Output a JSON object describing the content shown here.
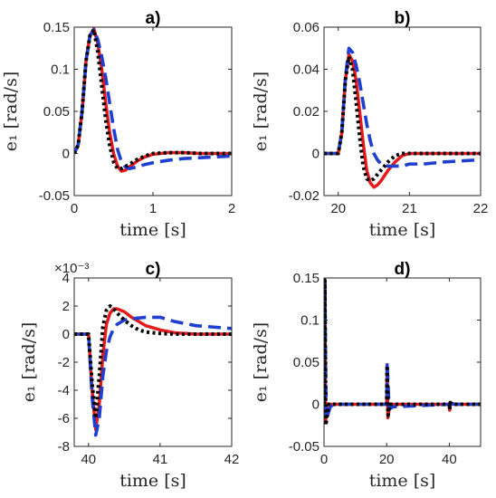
{
  "chart_data": [
    {
      "type": "line",
      "title": "a)",
      "xlabel": "time [s]",
      "ylabel": "e₁ [rad/s]",
      "xlim": [
        0,
        2
      ],
      "ylim": [
        -0.05,
        0.15
      ],
      "xticks": [
        0,
        1,
        2
      ],
      "yticks": [
        -0.05,
        0,
        0.05,
        0.1,
        0.15
      ],
      "xticklabels": [
        "0",
        "1",
        "2"
      ],
      "yticklabels": [
        "-0.05",
        "0",
        "0.05",
        "0.1",
        "0.15"
      ],
      "exponent": "",
      "series": [
        {
          "color": "#E41A1C",
          "style": "solid",
          "x": [
            0,
            0.05,
            0.1,
            0.15,
            0.2,
            0.25,
            0.3,
            0.35,
            0.4,
            0.45,
            0.5,
            0.55,
            0.6,
            0.65,
            0.7,
            0.8,
            0.9,
            1.0,
            1.2,
            1.4,
            1.6,
            1.8,
            2.0
          ],
          "y": [
            0,
            0.01,
            0.05,
            0.11,
            0.14,
            0.148,
            0.13,
            0.1,
            0.06,
            0.025,
            0.0,
            -0.015,
            -0.021,
            -0.02,
            -0.016,
            -0.009,
            -0.004,
            -0.001,
            0.001,
            0.001,
            0.0,
            0.0,
            0.0
          ]
        },
        {
          "color": "#1F3FD0",
          "style": "dashed",
          "x": [
            0,
            0.05,
            0.1,
            0.15,
            0.2,
            0.25,
            0.3,
            0.35,
            0.4,
            0.45,
            0.5,
            0.55,
            0.6,
            0.65,
            0.7,
            0.8,
            0.9,
            1.0,
            1.2,
            1.4,
            1.6,
            1.8,
            2.0
          ],
          "y": [
            0,
            0.01,
            0.05,
            0.11,
            0.14,
            0.147,
            0.135,
            0.115,
            0.09,
            0.06,
            0.03,
            0.005,
            -0.01,
            -0.016,
            -0.018,
            -0.016,
            -0.013,
            -0.011,
            -0.008,
            -0.006,
            -0.005,
            -0.004,
            -0.003
          ]
        },
        {
          "color": "#000000",
          "style": "dotted",
          "x": [
            0,
            0.05,
            0.1,
            0.15,
            0.2,
            0.25,
            0.3,
            0.35,
            0.4,
            0.45,
            0.5,
            0.55,
            0.6,
            0.7,
            0.8,
            0.9,
            1.0,
            1.2,
            1.4,
            1.6,
            1.8,
            2.0
          ],
          "y": [
            0,
            0.01,
            0.05,
            0.11,
            0.14,
            0.147,
            0.12,
            0.08,
            0.04,
            0.01,
            -0.01,
            -0.018,
            -0.018,
            -0.013,
            -0.007,
            -0.003,
            0.0,
            0.001,
            0.001,
            0.0,
            0.0,
            0.0
          ]
        }
      ]
    },
    {
      "type": "line",
      "title": "b)",
      "xlabel": "time [s]",
      "ylabel": "e₁ [rad/s]",
      "xlim": [
        19.8,
        22
      ],
      "ylim": [
        -0.02,
        0.06
      ],
      "xticks": [
        20,
        21,
        22
      ],
      "yticks": [
        -0.02,
        0,
        0.02,
        0.04,
        0.06
      ],
      "xticklabels": [
        "20",
        "21",
        "22"
      ],
      "yticklabels": [
        "-0.02",
        "0",
        "0.02",
        "0.04",
        "0.06"
      ],
      "exponent": "",
      "series": [
        {
          "color": "#E41A1C",
          "style": "solid",
          "x": [
            19.8,
            20.0,
            20.05,
            20.1,
            20.15,
            20.2,
            20.25,
            20.3,
            20.35,
            20.4,
            20.45,
            20.5,
            20.55,
            20.6,
            20.7,
            20.8,
            20.9,
            21.0,
            21.2,
            21.5,
            22.0
          ],
          "y": [
            0,
            0,
            0.01,
            0.035,
            0.047,
            0.044,
            0.035,
            0.02,
            0.005,
            -0.008,
            -0.014,
            -0.016,
            -0.015,
            -0.013,
            -0.008,
            -0.004,
            -0.001,
            0.0,
            0.0,
            0.0,
            0.0
          ]
        },
        {
          "color": "#1F3FD0",
          "style": "dashed",
          "x": [
            19.8,
            20.0,
            20.05,
            20.1,
            20.15,
            20.2,
            20.25,
            20.3,
            20.35,
            20.4,
            20.45,
            20.5,
            20.55,
            20.6,
            20.7,
            20.8,
            20.9,
            21.0,
            21.2,
            21.5,
            22.0
          ],
          "y": [
            0,
            0,
            0.01,
            0.036,
            0.05,
            0.048,
            0.042,
            0.034,
            0.024,
            0.014,
            0.006,
            0.0,
            -0.003,
            -0.005,
            -0.006,
            -0.006,
            -0.006,
            -0.005,
            -0.005,
            -0.004,
            -0.003
          ]
        },
        {
          "color": "#000000",
          "style": "dotted",
          "x": [
            19.8,
            20.0,
            20.05,
            20.1,
            20.15,
            20.2,
            20.25,
            20.3,
            20.35,
            20.4,
            20.45,
            20.5,
            20.6,
            20.7,
            20.8,
            20.9,
            21.0,
            21.2,
            21.5,
            22.0
          ],
          "y": [
            0,
            0,
            0.01,
            0.035,
            0.046,
            0.04,
            0.025,
            0.008,
            -0.006,
            -0.012,
            -0.013,
            -0.012,
            -0.008,
            -0.004,
            -0.001,
            0.0,
            0.0,
            0.0,
            0.0,
            0.0
          ]
        }
      ]
    },
    {
      "type": "line",
      "title": "c)",
      "xlabel": "time [s]",
      "ylabel": "e₁ [rad/s]",
      "xlim": [
        39.8,
        42
      ],
      "ylim": [
        -8,
        4
      ],
      "xticks": [
        40,
        41,
        42
      ],
      "yticks": [
        -8,
        -6,
        -4,
        -2,
        0,
        2,
        4
      ],
      "xticklabels": [
        "40",
        "41",
        "42"
      ],
      "yticklabels": [
        "-8",
        "-6",
        "-4",
        "-2",
        "0",
        "2",
        "4"
      ],
      "exponent": "×10⁻³",
      "series": [
        {
          "color": "#E41A1C",
          "style": "solid",
          "x": [
            39.8,
            40.0,
            40.05,
            40.1,
            40.15,
            40.2,
            40.25,
            40.3,
            40.35,
            40.4,
            40.5,
            40.6,
            40.7,
            40.8,
            41.0,
            41.2,
            41.5,
            42.0
          ],
          "y": [
            0,
            0,
            -4,
            -6.8,
            -5,
            -1.5,
            0.7,
            1.5,
            1.8,
            1.8,
            1.6,
            1.2,
            0.9,
            0.6,
            0.3,
            0.1,
            0.0,
            0.0
          ]
        },
        {
          "color": "#1F3FD0",
          "style": "dashed",
          "x": [
            39.8,
            40.0,
            40.05,
            40.1,
            40.15,
            40.2,
            40.25,
            40.3,
            40.35,
            40.4,
            40.5,
            40.6,
            40.7,
            40.8,
            41.0,
            41.2,
            41.5,
            42.0
          ],
          "y": [
            0,
            0,
            -4.5,
            -7.2,
            -6,
            -3,
            -1.2,
            -0.2,
            0.4,
            0.7,
            1.0,
            1.1,
            1.15,
            1.2,
            1.2,
            0.9,
            0.6,
            0.4
          ]
        },
        {
          "color": "#000000",
          "style": "dotted",
          "x": [
            39.8,
            40.0,
            40.05,
            40.1,
            40.15,
            40.2,
            40.25,
            40.3,
            40.35,
            40.4,
            40.5,
            40.6,
            40.7,
            40.8,
            41.0,
            41.2,
            41.5,
            42.0
          ],
          "y": [
            0,
            0,
            -3.5,
            -6,
            -3,
            0.5,
            1.7,
            2.0,
            1.8,
            1.5,
            1.0,
            0.6,
            0.3,
            0.15,
            0.05,
            0.0,
            0.0,
            0.0
          ]
        }
      ]
    },
    {
      "type": "line",
      "title": "d)",
      "xlabel": "time [s]",
      "ylabel": "e₁ [rad/s]",
      "xlim": [
        0,
        50
      ],
      "ylim": [
        -0.05,
        0.15
      ],
      "xticks": [
        0,
        20,
        40
      ],
      "yticks": [
        -0.05,
        0,
        0.05,
        0.1,
        0.15
      ],
      "xticklabels": [
        "0",
        "20",
        "40"
      ],
      "yticklabels": [
        "-0.05",
        "0",
        "0.05",
        "0.1",
        "0.15"
      ],
      "exponent": "",
      "series": [
        {
          "color": "#E41A1C",
          "style": "solid",
          "x": [
            0,
            0.25,
            0.5,
            1.0,
            2.0,
            20.0,
            20.15,
            20.4,
            21.0,
            40.0,
            40.1,
            40.4,
            41.0,
            50.0
          ],
          "y": [
            0,
            0.148,
            -0.02,
            0.0,
            0.0,
            0.0,
            0.047,
            -0.016,
            0.0,
            0.0,
            -0.007,
            0.002,
            0.0,
            0.0
          ]
        },
        {
          "color": "#1F3FD0",
          "style": "dashed",
          "x": [
            0,
            0.25,
            0.7,
            2.0,
            3.0,
            20.0,
            20.15,
            20.8,
            22.0,
            40.0,
            40.1,
            40.6,
            42.0,
            50.0
          ],
          "y": [
            0,
            0.147,
            -0.018,
            -0.003,
            0.0,
            0.0,
            0.05,
            -0.006,
            -0.003,
            0.0,
            -0.007,
            0.001,
            0.0,
            0.0
          ]
        },
        {
          "color": "#000000",
          "style": "dotted",
          "x": [
            0,
            0.25,
            0.55,
            1.5,
            20.0,
            20.15,
            20.45,
            21.0,
            40.0,
            40.1,
            40.3,
            41.0,
            50.0
          ],
          "y": [
            0,
            0.147,
            -0.025,
            0.0,
            0.0,
            0.046,
            -0.013,
            0.0,
            0.0,
            -0.006,
            0.002,
            0.0,
            0.0
          ]
        }
      ]
    }
  ]
}
